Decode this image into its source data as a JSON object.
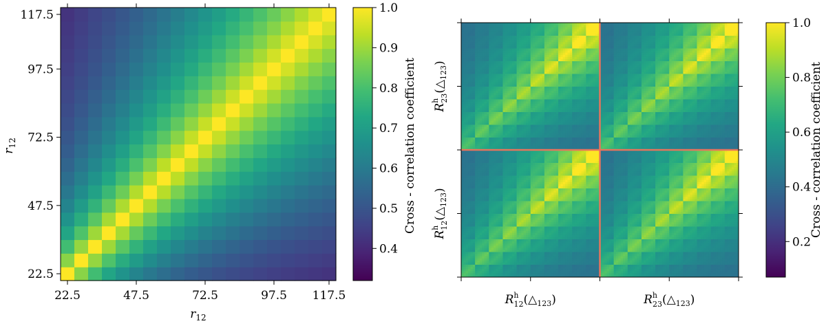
{
  "chart_data": [
    {
      "type": "heatmap",
      "xlabel": "r12",
      "ylabel": "r12",
      "xticks": [
        "22.5",
        "47.5",
        "72.5",
        "97.5",
        "117.5"
      ],
      "yticks": [
        "22.5",
        "47.5",
        "72.5",
        "97.5",
        "117.5"
      ],
      "range": [
        22.5,
        117.5
      ],
      "bins": 20,
      "colorbar": {
        "label": "Cross - correlation coefficient",
        "ticks": [
          "0.4",
          "0.5",
          "0.6",
          "0.7",
          "0.8",
          "0.9",
          "1.0"
        ],
        "range": [
          0.32,
          1.0
        ],
        "colormap": "viridis"
      },
      "matrix_model": {
        "diagonal": 1.0,
        "correlation_length_bins": 12.5,
        "description": "symmetric correlation matrix; value falls off with |i-j|, larger-r pairs stay more correlated"
      }
    },
    {
      "type": "heatmap",
      "xlabel": "R12h(Δ123) | R23h(Δ123)",
      "ylabel": "R12h(Δ123) | R23h(Δ123)",
      "block_labels_x": [
        {
          "main": "R",
          "sup": "h",
          "sub": "12",
          "tail": "(△",
          "sub2": "123",
          "close": ")"
        },
        {
          "main": "R",
          "sup": "h",
          "sub": "23",
          "tail": "(△",
          "sub2": "123",
          "close": ")"
        }
      ],
      "block_labels_y": [
        {
          "main": "R",
          "sup": "h",
          "sub": "12",
          "tail": "(△",
          "sub2": "123",
          "close": ")"
        },
        {
          "main": "R",
          "sup": "h",
          "sub": "23",
          "tail": "(△",
          "sub2": "123",
          "close": ")"
        }
      ],
      "blocks": 2,
      "cells_per_block": 60,
      "sub_blocks": 10,
      "divider_color": "#e8745b",
      "colorbar": {
        "label": "Cross - correlation coefficient",
        "ticks": [
          "0.2",
          "0.4",
          "0.6",
          "0.8",
          "1.0"
        ],
        "range": [
          0.07,
          1.0
        ],
        "colormap": "viridis"
      }
    }
  ]
}
